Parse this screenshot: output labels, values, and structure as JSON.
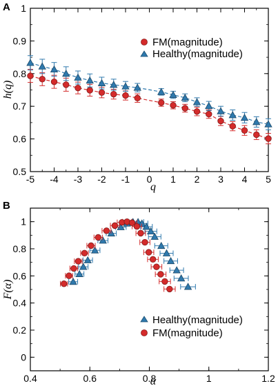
{
  "chart_data": [
    {
      "panel": "A",
      "type": "scatter",
      "xlabel": "q",
      "ylabel": "h(q)",
      "xlim": [
        -5,
        5
      ],
      "ylim": [
        0.5,
        1.0
      ],
      "xticks": [
        "-5",
        "-4",
        "-3",
        "-2",
        "-1",
        "0",
        "1",
        "2",
        "3",
        "4",
        "5"
      ],
      "yticks": [
        "0.5",
        "0.6",
        "0.7",
        "0.8",
        "0.9",
        "1"
      ],
      "grid": false,
      "legend_position": "top-right",
      "series": [
        {
          "name": "FM(magnitude)",
          "marker": "circle",
          "color": "#d42b2b",
          "fit_line": "dashed",
          "x": [
            -5,
            -4.5,
            -4,
            -3.5,
            -3,
            -2.5,
            -2,
            -1.5,
            -1,
            -0.5,
            0.5,
            1,
            1.5,
            2,
            2.5,
            3,
            3.5,
            4,
            4.5,
            5
          ],
          "y": [
            0.793,
            0.783,
            0.775,
            0.766,
            0.756,
            0.749,
            0.742,
            0.737,
            0.733,
            0.725,
            0.711,
            0.703,
            0.694,
            0.684,
            0.676,
            0.655,
            0.639,
            0.626,
            0.613,
            0.601
          ],
          "err": [
            0.02,
            0.02,
            0.02,
            0.02,
            0.018,
            0.018,
            0.016,
            0.015,
            0.014,
            0.013,
            0.011,
            0.011,
            0.012,
            0.013,
            0.013,
            0.014,
            0.014,
            0.015,
            0.015,
            0.016
          ]
        },
        {
          "name": "Healthy(magnitude)",
          "marker": "triangle",
          "color": "#2f79ad",
          "fit_line": "dashed",
          "x": [
            -5,
            -4.5,
            -4,
            -3.5,
            -3,
            -2.5,
            -2,
            -1.5,
            -1,
            -0.5,
            0.5,
            1,
            1.5,
            2,
            2.5,
            3,
            3.5,
            4,
            4.5,
            5
          ],
          "y": [
            0.833,
            0.822,
            0.813,
            0.8,
            0.788,
            0.779,
            0.771,
            0.766,
            0.761,
            0.757,
            0.744,
            0.735,
            0.726,
            0.713,
            0.701,
            0.685,
            0.673,
            0.665,
            0.652,
            0.645
          ],
          "err": [
            0.022,
            0.022,
            0.021,
            0.021,
            0.02,
            0.02,
            0.018,
            0.017,
            0.015,
            0.013,
            0.01,
            0.011,
            0.012,
            0.013,
            0.014,
            0.015,
            0.016,
            0.016,
            0.016,
            0.017
          ]
        }
      ]
    },
    {
      "panel": "B",
      "type": "scatter",
      "xlabel": "α",
      "ylabel": "F(α)",
      "xlim": [
        0.4,
        1.2
      ],
      "ylim": [
        -0.1,
        1.1
      ],
      "xticks": [
        "0.4",
        "0.6",
        "0.8",
        "1",
        "1.2"
      ],
      "yticks": [
        "0",
        "0.2",
        "0.4",
        "0.6",
        "0.8",
        "1"
      ],
      "grid": false,
      "legend_position": "bottom-right",
      "series": [
        {
          "name": "Healthy(magnitude)",
          "marker": "triangle",
          "color": "#2f79ad",
          "x": [
            0.544,
            0.565,
            0.578,
            0.593,
            0.617,
            0.644,
            0.672,
            0.704,
            0.725,
            0.745,
            0.762,
            0.775,
            0.79,
            0.805,
            0.818,
            0.84,
            0.858,
            0.872,
            0.892,
            0.907,
            0.93
          ],
          "y": [
            0.557,
            0.614,
            0.667,
            0.716,
            0.789,
            0.861,
            0.914,
            0.96,
            0.987,
            0.998,
            0.998,
            0.987,
            0.963,
            0.929,
            0.889,
            0.822,
            0.767,
            0.71,
            0.642,
            0.582,
            0.52
          ],
          "xerr": [
            0.015,
            0.015,
            0.016,
            0.016,
            0.017,
            0.017,
            0.017,
            0.018,
            0.018,
            0.018,
            0.019,
            0.02,
            0.02,
            0.02,
            0.021,
            0.022,
            0.022,
            0.023,
            0.023,
            0.024,
            0.025
          ]
        },
        {
          "name": "FM(magnitude)",
          "marker": "circle",
          "color": "#d42b2b",
          "x": [
            0.513,
            0.53,
            0.546,
            0.561,
            0.582,
            0.604,
            0.628,
            0.656,
            0.684,
            0.708,
            0.725,
            0.742,
            0.758,
            0.771,
            0.785,
            0.798,
            0.812,
            0.824,
            0.838,
            0.852,
            0.868
          ],
          "y": [
            0.542,
            0.601,
            0.655,
            0.708,
            0.768,
            0.823,
            0.884,
            0.933,
            0.971,
            0.995,
            1.0,
            0.992,
            0.965,
            0.915,
            0.848,
            0.774,
            0.722,
            0.667,
            0.612,
            0.559,
            0.503
          ],
          "xerr": [
            0.012,
            0.012,
            0.013,
            0.013,
            0.013,
            0.014,
            0.014,
            0.015,
            0.015,
            0.016,
            0.016,
            0.016,
            0.016,
            0.016,
            0.017,
            0.017,
            0.018,
            0.018,
            0.018,
            0.019,
            0.019
          ]
        }
      ]
    }
  ],
  "panel_a": {
    "letter": "A",
    "ylabel": "h(q)",
    "xlabel": "q",
    "legend": [
      "FM(magnitude)",
      "Healthy(magnitude)"
    ]
  },
  "panel_b": {
    "letter": "B",
    "ylabel": "F(α)",
    "xlabel": "α",
    "legend": [
      "Healthy(magnitude)",
      "FM(magnitude)"
    ]
  }
}
